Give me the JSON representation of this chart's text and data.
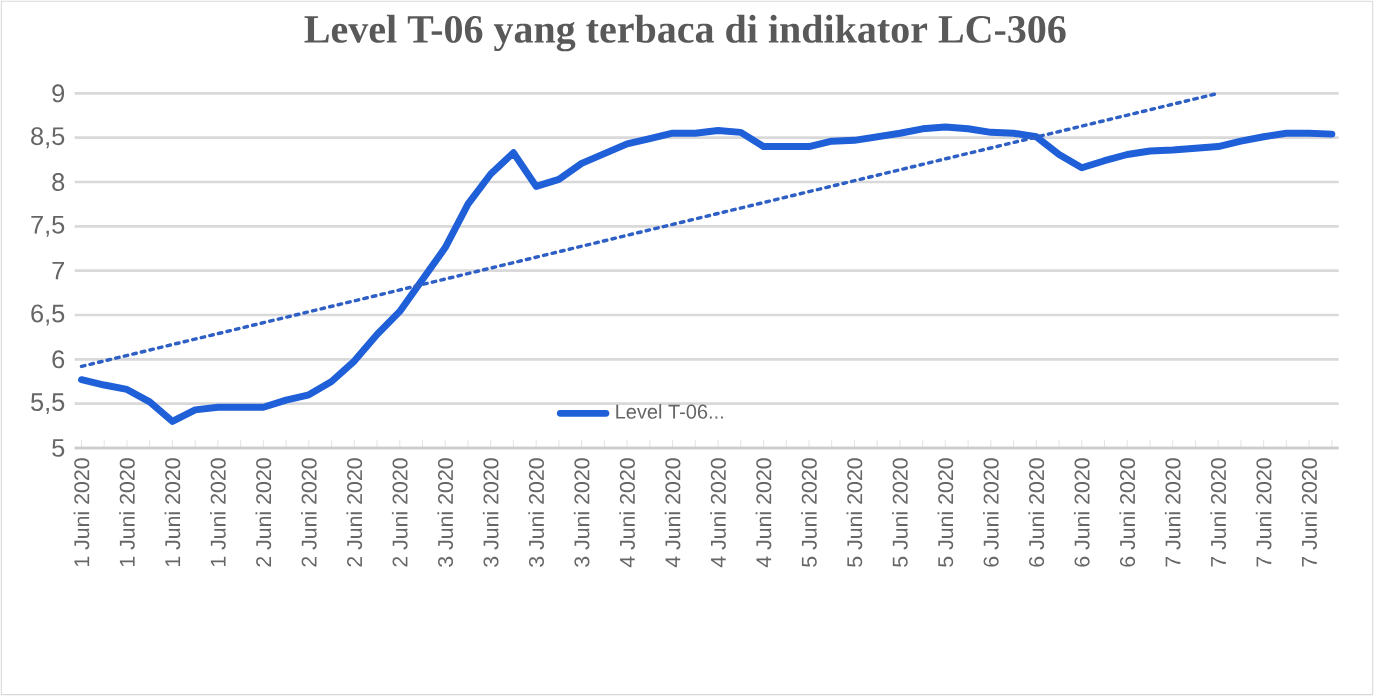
{
  "chart_data": {
    "type": "line",
    "title": "Level T-06 yang terbaca di indikator LC-306",
    "categories": [
      "1 Juni 2020",
      null,
      "1 Juni 2020",
      null,
      "1 Juni 2020",
      null,
      "1 Juni 2020",
      null,
      "2 Juni 2020",
      null,
      "2 Juni 2020",
      null,
      "2 Juni 2020",
      null,
      "2 Juni 2020",
      null,
      "3 Juni 2020",
      null,
      "3 Juni 2020",
      null,
      "3 Juni 2020",
      null,
      "3 Juni 2020",
      null,
      "4 Juni 2020",
      null,
      "4 Juni 2020",
      null,
      "4 Juni 2020",
      null,
      "4 Juni 2020",
      null,
      "5 Juni 2020",
      null,
      "5 Juni 2020",
      null,
      "5 Juni 2020",
      null,
      "5 Juni 2020",
      null,
      "6 Juni 2020",
      null,
      "6 Juni 2020",
      null,
      "6 Juni 2020",
      null,
      "6 Juni 2020",
      null,
      "7 Juni 2020",
      null,
      "7 Juni 2020",
      null,
      "7 Juni 2020",
      null,
      "7 Juni 2020",
      null
    ],
    "series": [
      {
        "name": "Level T-06...",
        "color": "#1f5fd8",
        "line_style": "solid",
        "values": [
          5.77,
          5.71,
          5.66,
          5.52,
          5.3,
          5.43,
          5.46,
          5.46,
          5.46,
          5.54,
          5.6,
          5.75,
          5.98,
          6.28,
          6.54,
          6.9,
          7.26,
          7.75,
          8.09,
          8.33,
          7.95,
          8.03,
          8.21,
          8.32,
          8.43,
          8.49,
          8.55,
          8.55,
          8.58,
          8.56,
          8.4,
          8.4,
          8.4,
          8.46,
          8.47,
          8.51,
          8.55,
          8.6,
          8.62,
          8.6,
          8.56,
          8.55,
          8.51,
          8.31,
          8.16,
          8.24,
          8.31,
          8.35,
          8.36,
          8.38,
          8.4,
          8.46,
          8.51,
          8.55,
          8.55,
          8.54
        ]
      },
      {
        "color": "#2e5fc4",
        "line_style": "dotted",
        "values": [
          5.92,
          null,
          null,
          null,
          null,
          null,
          null,
          null,
          null,
          null,
          null,
          null,
          null,
          null,
          null,
          null,
          null,
          null,
          null,
          null,
          null,
          null,
          null,
          null,
          null,
          null,
          null,
          null,
          null,
          null,
          null,
          null,
          null,
          null,
          null,
          null,
          null,
          null,
          null,
          null,
          null,
          null,
          null,
          null,
          null,
          null,
          null,
          null,
          null,
          null,
          9.0,
          null,
          null,
          null,
          null,
          null
        ]
      }
    ],
    "ylim": [
      5,
      9
    ],
    "yticks": [
      5,
      {
        "value": 5.5,
        "label": "5,5"
      },
      6,
      {
        "value": 6.5,
        "label": "6,5"
      },
      7,
      {
        "value": 7.5,
        "label": "7,5"
      },
      8,
      {
        "value": 8.5,
        "label": "8,5"
      },
      9
    ],
    "grid": "y",
    "legend": "bottom",
    "marker": "none"
  }
}
